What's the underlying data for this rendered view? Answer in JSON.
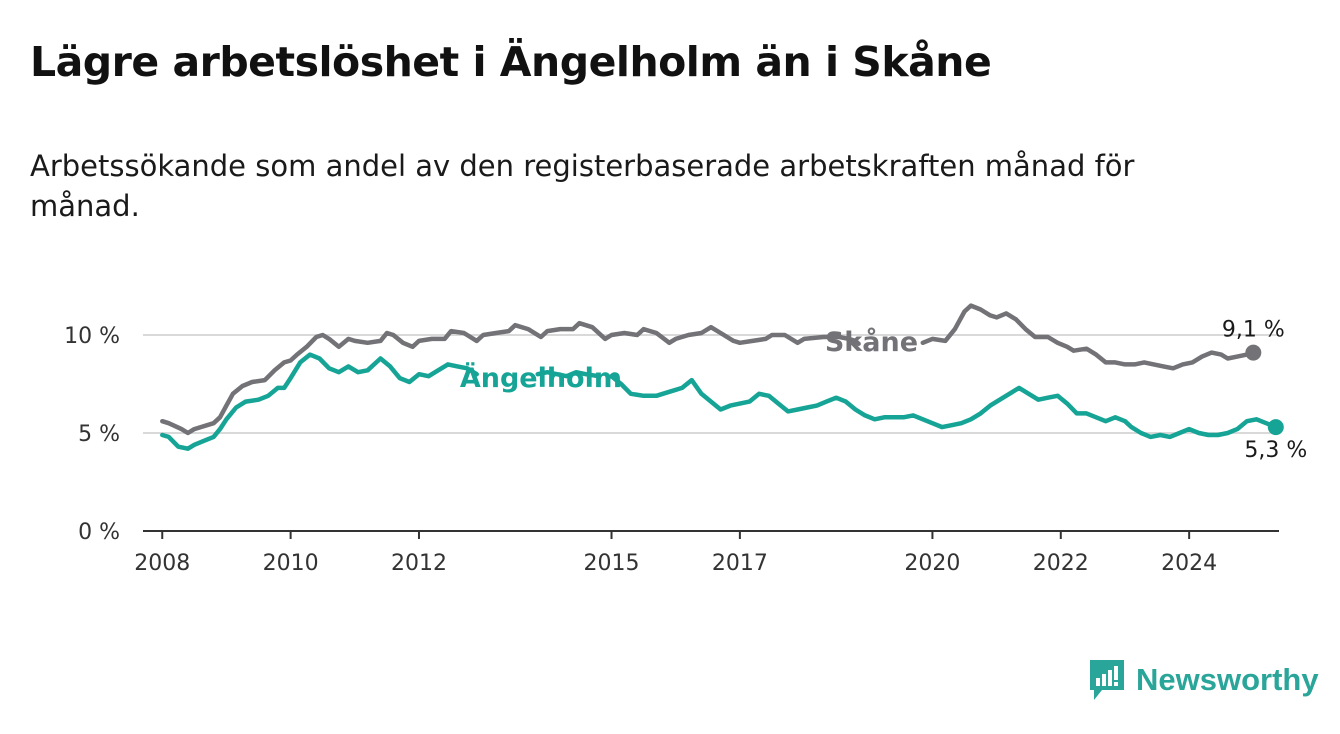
{
  "title": "Lägre arbetslöshet i Ängelholm än i Skåne",
  "subtitle": "Arbetssökande som andel av den registerbaserade arbetskraften månad för månad.",
  "logo": {
    "text": "Newsworthy",
    "icon": "bar-chart-speech-bubble-icon",
    "color": "#2aa59a"
  },
  "chart_data": {
    "type": "line",
    "title": "Lägre arbetslöshet i Ängelholm än i Skåne",
    "xlabel": "",
    "ylabel": "",
    "xlim": [
      2007.7,
      2025.4
    ],
    "ylim": [
      0,
      10
    ],
    "y_ticks": [
      {
        "value": 0,
        "label": "0 %"
      },
      {
        "value": 5,
        "label": "5 %"
      },
      {
        "value": 10,
        "label": "10 %"
      }
    ],
    "x_ticks": [
      {
        "value": 2008,
        "label": "2008"
      },
      {
        "value": 2010,
        "label": "2010"
      },
      {
        "value": 2012,
        "label": "2012"
      },
      {
        "value": 2015,
        "label": "2015"
      },
      {
        "value": 2017,
        "label": "2017"
      },
      {
        "value": 2020,
        "label": "2020"
      },
      {
        "value": 2022,
        "label": "2022"
      },
      {
        "value": 2024,
        "label": "2024"
      }
    ],
    "grid": true,
    "series": [
      {
        "name": "Skåne",
        "color": "#737277",
        "label": "Skåne",
        "end_label": "9,1 %",
        "points": [
          [
            2008.0,
            5.6
          ],
          [
            2008.1,
            5.5
          ],
          [
            2008.3,
            5.2
          ],
          [
            2008.4,
            5.0
          ],
          [
            2008.5,
            5.2
          ],
          [
            2008.6,
            5.3
          ],
          [
            2008.8,
            5.5
          ],
          [
            2008.9,
            5.8
          ],
          [
            2009.0,
            6.4
          ],
          [
            2009.1,
            7.0
          ],
          [
            2009.25,
            7.4
          ],
          [
            2009.4,
            7.6
          ],
          [
            2009.6,
            7.7
          ],
          [
            2009.75,
            8.2
          ],
          [
            2009.9,
            8.6
          ],
          [
            2010.0,
            8.7
          ],
          [
            2010.1,
            9.0
          ],
          [
            2010.25,
            9.4
          ],
          [
            2010.4,
            9.9
          ],
          [
            2010.5,
            10.0
          ],
          [
            2010.6,
            9.8
          ],
          [
            2010.75,
            9.4
          ],
          [
            2010.9,
            9.8
          ],
          [
            2011.0,
            9.7
          ],
          [
            2011.2,
            9.6
          ],
          [
            2011.4,
            9.7
          ],
          [
            2011.5,
            10.1
          ],
          [
            2011.6,
            10.0
          ],
          [
            2011.75,
            9.6
          ],
          [
            2011.9,
            9.4
          ],
          [
            2012.0,
            9.7
          ],
          [
            2012.2,
            9.8
          ],
          [
            2012.4,
            9.8
          ],
          [
            2012.5,
            10.2
          ],
          [
            2012.7,
            10.1
          ],
          [
            2012.9,
            9.7
          ],
          [
            2013.0,
            10.0
          ],
          [
            2013.2,
            10.1
          ],
          [
            2013.4,
            10.2
          ],
          [
            2013.5,
            10.5
          ],
          [
            2013.7,
            10.3
          ],
          [
            2013.9,
            9.9
          ],
          [
            2014.0,
            10.2
          ],
          [
            2014.2,
            10.3
          ],
          [
            2014.4,
            10.3
          ],
          [
            2014.5,
            10.6
          ],
          [
            2014.7,
            10.4
          ],
          [
            2014.9,
            9.8
          ],
          [
            2015.0,
            10.0
          ],
          [
            2015.2,
            10.1
          ],
          [
            2015.4,
            10.0
          ],
          [
            2015.5,
            10.3
          ],
          [
            2015.7,
            10.1
          ],
          [
            2015.9,
            9.6
          ],
          [
            2016.0,
            9.8
          ],
          [
            2016.2,
            10.0
          ],
          [
            2016.4,
            10.1
          ],
          [
            2016.55,
            10.4
          ],
          [
            2016.7,
            10.1
          ],
          [
            2016.9,
            9.7
          ],
          [
            2017.0,
            9.6
          ],
          [
            2017.2,
            9.7
          ],
          [
            2017.4,
            9.8
          ],
          [
            2017.5,
            10.0
          ],
          [
            2017.7,
            10.0
          ],
          [
            2017.9,
            9.6
          ],
          [
            2018.0,
            9.8
          ],
          [
            2018.3,
            9.9
          ],
          [
            2018.55,
            9.9
          ],
          [
            2018.7,
            9.8
          ],
          [
            2018.8,
            9.7
          ],
          [
            2018.85,
            9.55
          ],
          null,
          [
            2019.85,
            9.6
          ],
          [
            2020.0,
            9.8
          ],
          [
            2020.2,
            9.7
          ],
          [
            2020.35,
            10.3
          ],
          [
            2020.5,
            11.2
          ],
          [
            2020.6,
            11.5
          ],
          [
            2020.75,
            11.3
          ],
          [
            2020.9,
            11.0
          ],
          [
            2021.0,
            10.9
          ],
          [
            2021.15,
            11.1
          ],
          [
            2021.3,
            10.8
          ],
          [
            2021.45,
            10.3
          ],
          [
            2021.6,
            9.9
          ],
          [
            2021.8,
            9.9
          ],
          [
            2021.95,
            9.6
          ],
          [
            2022.1,
            9.4
          ],
          [
            2022.2,
            9.2
          ],
          [
            2022.4,
            9.3
          ],
          [
            2022.55,
            9.0
          ],
          [
            2022.7,
            8.6
          ],
          [
            2022.85,
            8.6
          ],
          [
            2023.0,
            8.5
          ],
          [
            2023.15,
            8.5
          ],
          [
            2023.3,
            8.6
          ],
          [
            2023.45,
            8.5
          ],
          [
            2023.6,
            8.4
          ],
          [
            2023.75,
            8.3
          ],
          [
            2023.9,
            8.5
          ],
          [
            2024.05,
            8.6
          ],
          [
            2024.2,
            8.9
          ],
          [
            2024.35,
            9.1
          ],
          [
            2024.5,
            9.0
          ],
          [
            2024.6,
            8.8
          ],
          [
            2024.75,
            8.9
          ],
          [
            2024.9,
            9.0
          ],
          [
            2025.0,
            9.1
          ]
        ]
      },
      {
        "name": "Ängelholm",
        "color": "#15a496",
        "label": "Ängelholm",
        "end_label": "5,3 %",
        "points": [
          [
            2008.0,
            4.9
          ],
          [
            2008.1,
            4.8
          ],
          [
            2008.25,
            4.3
          ],
          [
            2008.4,
            4.2
          ],
          [
            2008.5,
            4.4
          ],
          [
            2008.65,
            4.6
          ],
          [
            2008.8,
            4.8
          ],
          [
            2008.9,
            5.2
          ],
          [
            2009.0,
            5.7
          ],
          [
            2009.15,
            6.3
          ],
          [
            2009.3,
            6.6
          ],
          [
            2009.5,
            6.7
          ],
          [
            2009.65,
            6.9
          ],
          [
            2009.8,
            7.3
          ],
          [
            2009.9,
            7.3
          ],
          [
            2010.0,
            7.8
          ],
          [
            2010.15,
            8.6
          ],
          [
            2010.3,
            9.0
          ],
          [
            2010.45,
            8.8
          ],
          [
            2010.6,
            8.3
          ],
          [
            2010.75,
            8.1
          ],
          [
            2010.9,
            8.4
          ],
          [
            2011.05,
            8.1
          ],
          [
            2011.2,
            8.2
          ],
          [
            2011.4,
            8.8
          ],
          [
            2011.55,
            8.4
          ],
          [
            2011.7,
            7.8
          ],
          [
            2011.85,
            7.6
          ],
          [
            2012.0,
            8.0
          ],
          [
            2012.15,
            7.9
          ],
          [
            2012.3,
            8.2
          ],
          [
            2012.45,
            8.5
          ],
          [
            2012.6,
            8.4
          ],
          [
            2012.75,
            8.3
          ],
          [
            2012.9,
            8.0
          ],
          null,
          [
            2013.85,
            8.0
          ],
          [
            2014.0,
            8.1
          ],
          [
            2014.15,
            8.0
          ],
          [
            2014.3,
            7.9
          ],
          [
            2014.45,
            8.1
          ],
          [
            2014.6,
            8.0
          ],
          [
            2014.8,
            7.9
          ],
          null,
          [
            2015.0,
            7.9
          ],
          [
            2015.15,
            7.5
          ],
          [
            2015.3,
            7.0
          ],
          [
            2015.5,
            6.9
          ],
          [
            2015.7,
            6.9
          ],
          [
            2015.9,
            7.1
          ],
          [
            2016.1,
            7.3
          ],
          [
            2016.25,
            7.7
          ],
          [
            2016.4,
            7.0
          ],
          [
            2016.55,
            6.6
          ],
          [
            2016.7,
            6.2
          ],
          [
            2016.85,
            6.4
          ],
          [
            2017.0,
            6.5
          ],
          [
            2017.15,
            6.6
          ],
          [
            2017.3,
            7.0
          ],
          [
            2017.45,
            6.9
          ],
          [
            2017.6,
            6.5
          ],
          [
            2017.75,
            6.1
          ],
          [
            2017.9,
            6.2
          ],
          [
            2018.05,
            6.3
          ],
          [
            2018.2,
            6.4
          ],
          [
            2018.35,
            6.6
          ],
          [
            2018.5,
            6.8
          ],
          [
            2018.65,
            6.6
          ],
          [
            2018.8,
            6.2
          ],
          [
            2018.95,
            5.9
          ],
          [
            2019.1,
            5.7
          ],
          [
            2019.25,
            5.8
          ],
          [
            2019.4,
            5.8
          ],
          [
            2019.55,
            5.8
          ],
          [
            2019.7,
            5.9
          ],
          [
            2019.85,
            5.7
          ],
          [
            2020.0,
            5.5
          ],
          [
            2020.15,
            5.3
          ],
          [
            2020.3,
            5.4
          ],
          [
            2020.45,
            5.5
          ],
          [
            2020.6,
            5.7
          ],
          [
            2020.75,
            6.0
          ],
          [
            2020.9,
            6.4
          ],
          [
            2021.05,
            6.7
          ],
          [
            2021.2,
            7.0
          ],
          [
            2021.35,
            7.3
          ],
          [
            2021.5,
            7.0
          ],
          [
            2021.65,
            6.7
          ],
          [
            2021.8,
            6.8
          ],
          [
            2021.95,
            6.9
          ],
          [
            2022.1,
            6.5
          ],
          [
            2022.25,
            6.0
          ],
          [
            2022.4,
            6.0
          ],
          [
            2022.55,
            5.8
          ],
          [
            2022.7,
            5.6
          ],
          [
            2022.85,
            5.8
          ],
          [
            2023.0,
            5.6
          ],
          [
            2023.1,
            5.3
          ],
          [
            2023.25,
            5.0
          ],
          [
            2023.4,
            4.8
          ],
          [
            2023.55,
            4.9
          ],
          [
            2023.7,
            4.8
          ],
          [
            2023.85,
            5.0
          ],
          [
            2024.0,
            5.2
          ],
          [
            2024.15,
            5.0
          ],
          [
            2024.3,
            4.9
          ],
          [
            2024.45,
            4.9
          ],
          [
            2024.6,
            5.0
          ],
          [
            2024.75,
            5.2
          ],
          [
            2024.9,
            5.6
          ],
          [
            2025.05,
            5.7
          ],
          [
            2025.2,
            5.5
          ],
          [
            2025.35,
            5.3
          ]
        ]
      }
    ]
  }
}
